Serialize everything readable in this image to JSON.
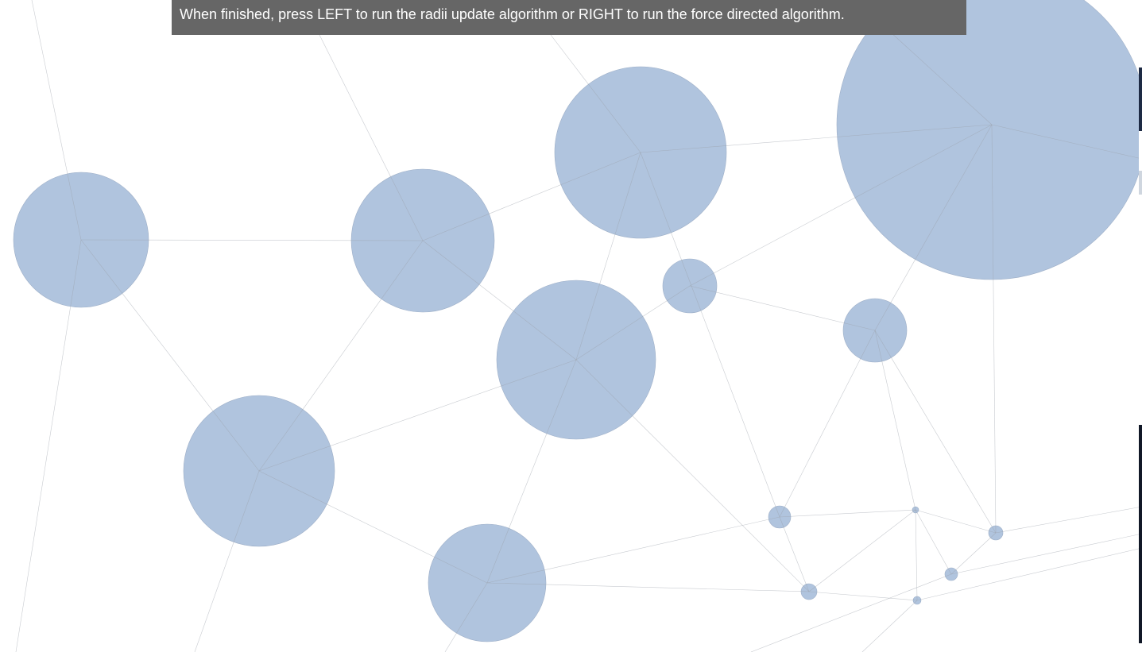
{
  "banner": {
    "text": "When finished, press LEFT to run the radii update algorithm or RIGHT to run the force directed algorithm."
  },
  "colors": {
    "node_fill": "#b0c4de",
    "edge": "#9aa0aa",
    "banner_bg": "#666666",
    "banner_text": "#ffffff"
  }
}
